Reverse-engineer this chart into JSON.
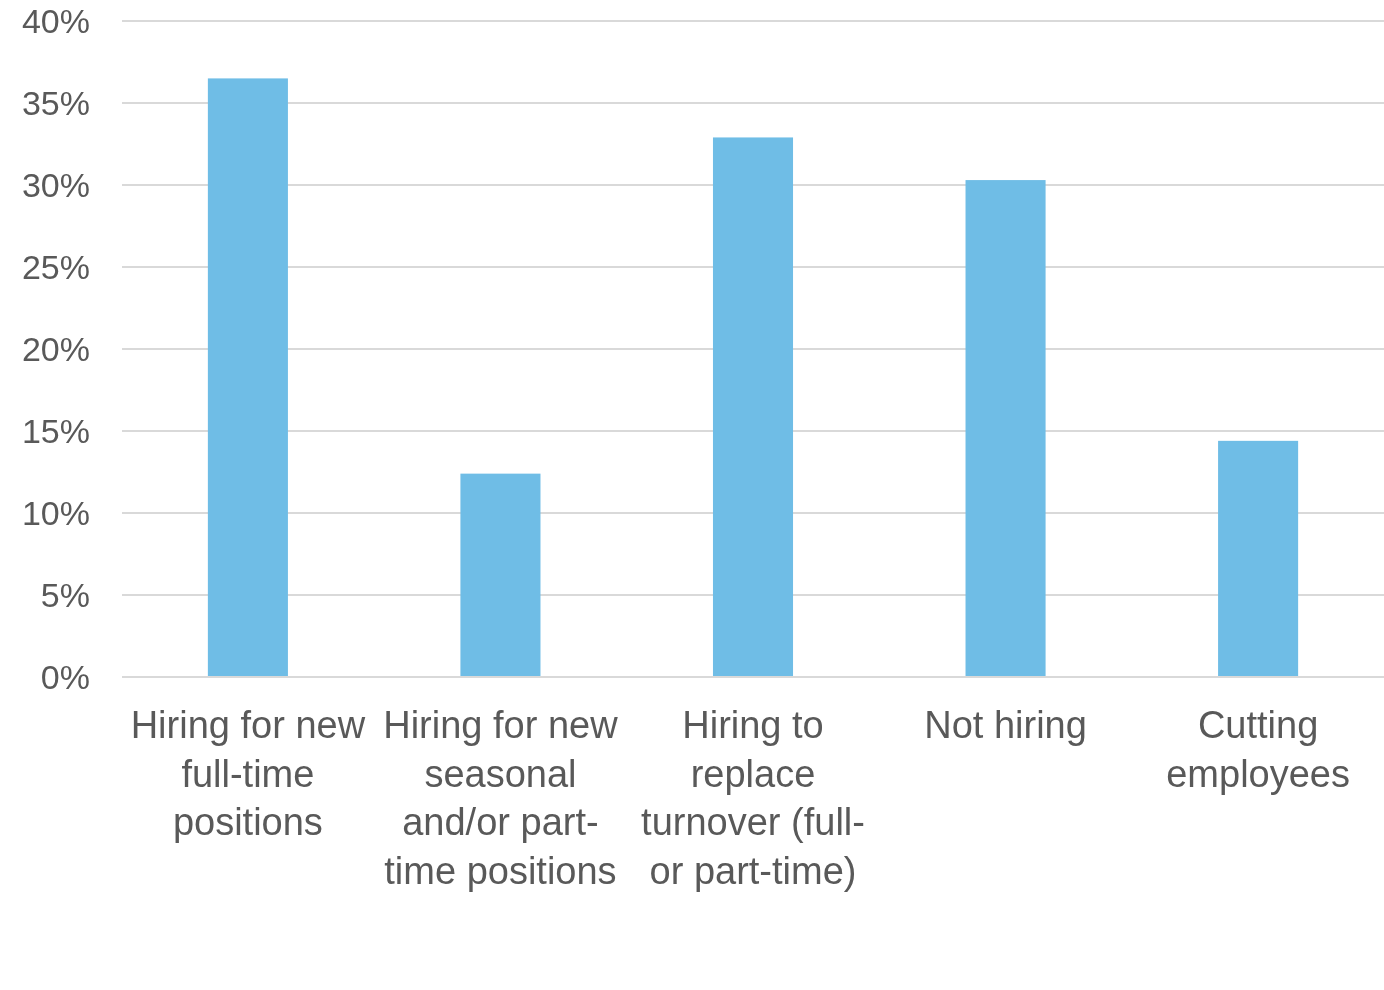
{
  "chart_data": {
    "type": "bar",
    "categories": [
      "Hiring for new full-time positions",
      "Hiring for new seasonal and/or part-time positions",
      "Hiring to replace turnover (full- or part-time)",
      "Not hiring",
      "Cutting employees"
    ],
    "values": [
      36.5,
      12.4,
      32.9,
      30.3,
      14.4
    ],
    "color": "#6fbde6",
    "ylim": [
      0,
      40
    ],
    "yticks": [
      {
        "value": 0,
        "label": "0%"
      },
      {
        "value": 5,
        "label": "5%"
      },
      {
        "value": 10,
        "label": "10%"
      },
      {
        "value": 15,
        "label": "15%"
      },
      {
        "value": 20,
        "label": "20%"
      },
      {
        "value": 25,
        "label": "25%"
      },
      {
        "value": 30,
        "label": "30%"
      },
      {
        "value": 35,
        "label": "35%"
      },
      {
        "value": 40,
        "label": "40%"
      }
    ],
    "grid": "y"
  }
}
